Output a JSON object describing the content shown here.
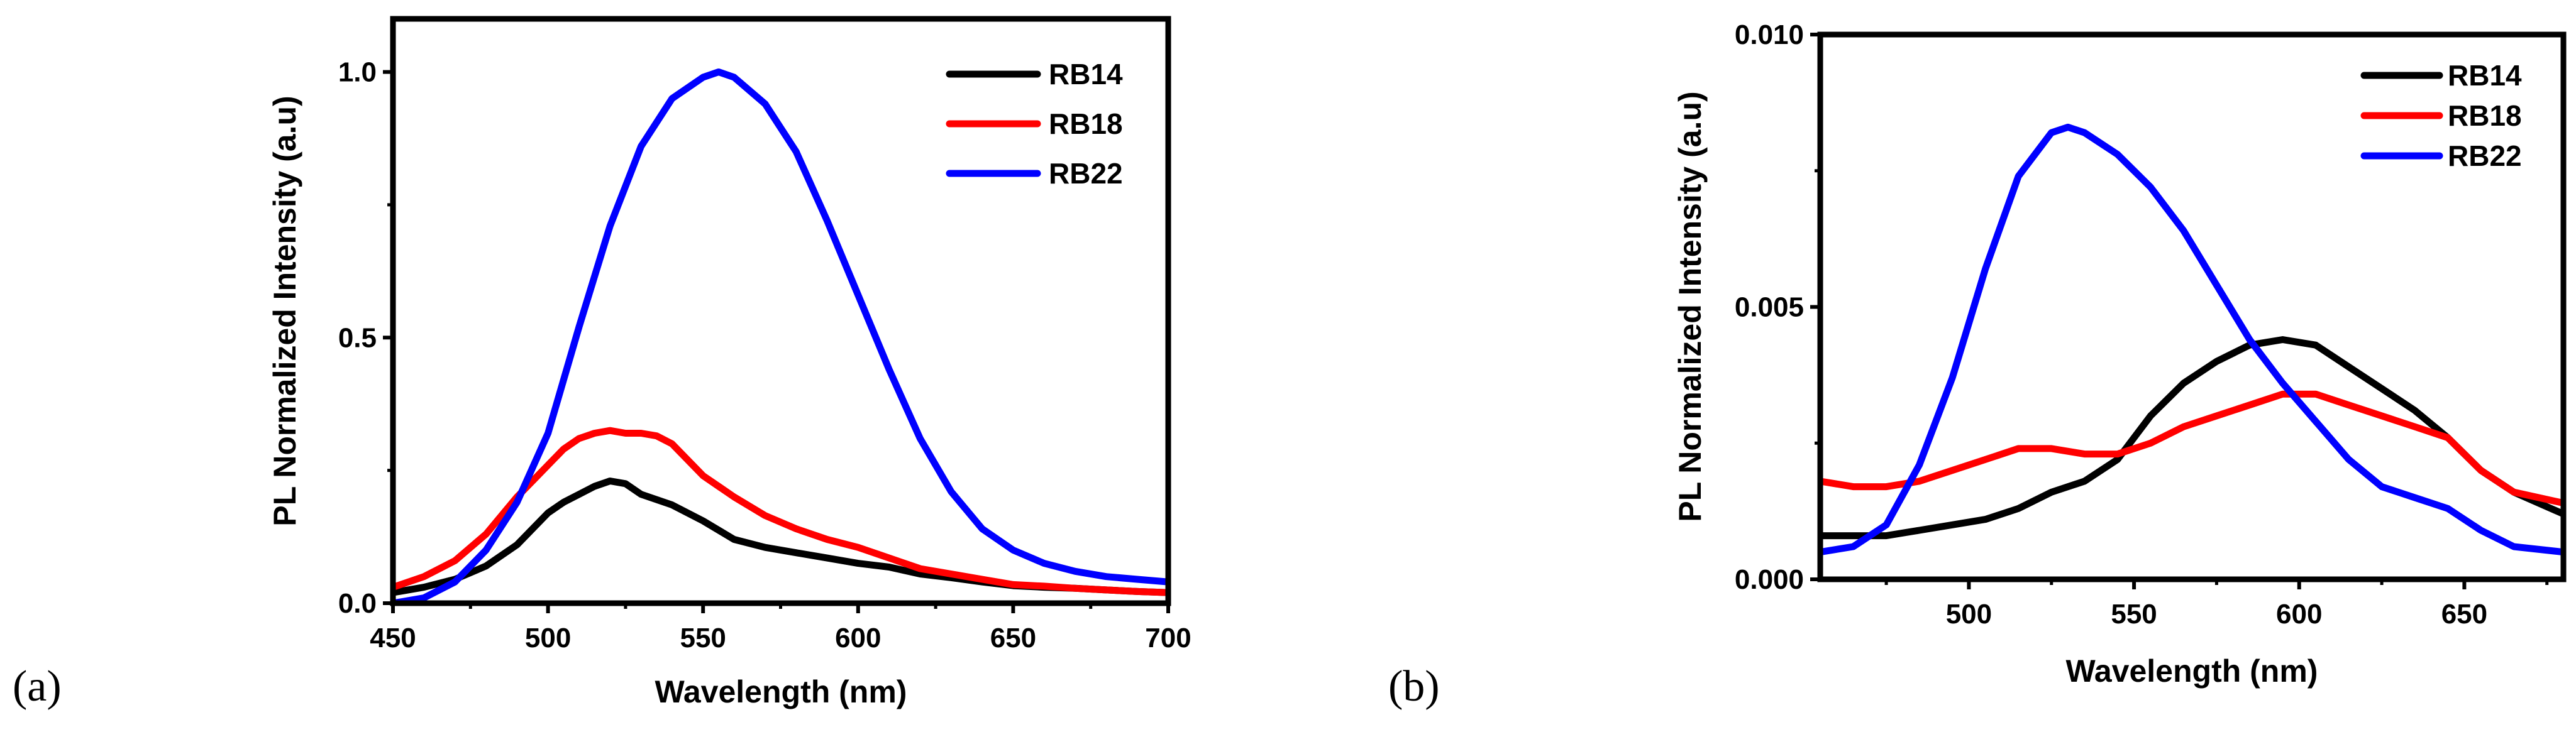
{
  "chart_data": [
    {
      "type": "line",
      "panel_label": "(a)",
      "xlabel": "Wavelength (nm)",
      "ylabel": "PL Normalized Intensity (a.u)",
      "xlim": [
        450,
        700
      ],
      "ylim": [
        0,
        1.1
      ],
      "x_ticks": [
        450,
        500,
        550,
        600,
        650,
        700
      ],
      "y_ticks": [
        0.0,
        0.5,
        1.0
      ],
      "x_tick_labels": [
        "450",
        "500",
        "550",
        "600",
        "650",
        "700"
      ],
      "y_tick_labels": [
        "0.0",
        "0.5",
        "1.0"
      ],
      "legend_position": "top-right",
      "series": [
        {
          "name": "RB14",
          "color": "#000000",
          "x": [
            450,
            460,
            470,
            480,
            490,
            500,
            505,
            510,
            515,
            520,
            525,
            530,
            540,
            550,
            560,
            570,
            580,
            590,
            600,
            610,
            620,
            630,
            640,
            650,
            660,
            670,
            680,
            690,
            700
          ],
          "y": [
            0.02,
            0.03,
            0.045,
            0.07,
            0.11,
            0.17,
            0.19,
            0.205,
            0.22,
            0.23,
            0.225,
            0.205,
            0.185,
            0.155,
            0.12,
            0.105,
            0.095,
            0.085,
            0.075,
            0.068,
            0.055,
            0.048,
            0.04,
            0.033,
            0.03,
            0.028,
            0.025,
            0.022,
            0.02
          ]
        },
        {
          "name": "RB18",
          "color": "#ff0000",
          "x": [
            450,
            460,
            470,
            480,
            490,
            500,
            505,
            510,
            515,
            520,
            525,
            530,
            535,
            540,
            550,
            560,
            570,
            580,
            590,
            600,
            610,
            620,
            630,
            640,
            650,
            660,
            670,
            680,
            690,
            700
          ],
          "y": [
            0.03,
            0.05,
            0.08,
            0.13,
            0.2,
            0.26,
            0.29,
            0.31,
            0.32,
            0.325,
            0.32,
            0.32,
            0.315,
            0.3,
            0.24,
            0.2,
            0.165,
            0.14,
            0.12,
            0.105,
            0.085,
            0.065,
            0.055,
            0.045,
            0.035,
            0.032,
            0.028,
            0.025,
            0.022,
            0.02
          ]
        },
        {
          "name": "RB22",
          "color": "#0000ff",
          "x": [
            450,
            460,
            470,
            480,
            490,
            500,
            510,
            520,
            530,
            540,
            550,
            555,
            560,
            570,
            580,
            590,
            600,
            610,
            620,
            630,
            640,
            650,
            660,
            670,
            680,
            690,
            700
          ],
          "y": [
            0.0,
            0.01,
            0.04,
            0.1,
            0.19,
            0.32,
            0.52,
            0.71,
            0.86,
            0.95,
            0.99,
            1.0,
            0.99,
            0.94,
            0.85,
            0.72,
            0.58,
            0.44,
            0.31,
            0.21,
            0.14,
            0.1,
            0.075,
            0.06,
            0.05,
            0.045,
            0.04
          ]
        }
      ]
    },
    {
      "type": "line",
      "panel_label": "(b)",
      "xlabel": "Wavelength (nm)",
      "ylabel": "PL Normalized Intensity (a.u)",
      "xlim": [
        455,
        680
      ],
      "ylim": [
        0,
        0.01
      ],
      "x_ticks": [
        500,
        550,
        600,
        650
      ],
      "y_ticks": [
        0.0,
        0.005,
        0.01
      ],
      "x_tick_labels": [
        "500",
        "550",
        "600",
        "650"
      ],
      "y_tick_labels": [
        "0.000",
        "0.005",
        "0.010"
      ],
      "legend_position": "top-right",
      "series": [
        {
          "name": "RB14",
          "color": "#000000",
          "x": [
            455,
            465,
            475,
            485,
            495,
            505,
            515,
            525,
            535,
            545,
            555,
            565,
            575,
            585,
            595,
            605,
            615,
            625,
            635,
            645,
            655,
            665,
            680
          ],
          "y": [
            0.0008,
            0.0008,
            0.0008,
            0.0009,
            0.001,
            0.0011,
            0.0013,
            0.0016,
            0.0018,
            0.0022,
            0.003,
            0.0036,
            0.004,
            0.0043,
            0.0044,
            0.0043,
            0.0039,
            0.0035,
            0.0031,
            0.0026,
            0.002,
            0.0016,
            0.0012
          ]
        },
        {
          "name": "RB18",
          "color": "#ff0000",
          "x": [
            455,
            465,
            475,
            485,
            495,
            505,
            515,
            525,
            535,
            545,
            555,
            565,
            575,
            585,
            595,
            605,
            615,
            625,
            635,
            645,
            655,
            665,
            680
          ],
          "y": [
            0.0018,
            0.0017,
            0.0017,
            0.0018,
            0.002,
            0.0022,
            0.0024,
            0.0024,
            0.0023,
            0.0023,
            0.0025,
            0.0028,
            0.003,
            0.0032,
            0.0034,
            0.0034,
            0.0032,
            0.003,
            0.0028,
            0.0026,
            0.002,
            0.0016,
            0.0014
          ]
        },
        {
          "name": "RB22",
          "color": "#0000ff",
          "x": [
            455,
            465,
            475,
            485,
            495,
            505,
            515,
            525,
            530,
            535,
            545,
            555,
            565,
            575,
            585,
            595,
            605,
            615,
            625,
            635,
            645,
            655,
            665,
            680
          ],
          "y": [
            0.0005,
            0.0006,
            0.001,
            0.0021,
            0.0037,
            0.0057,
            0.0074,
            0.0082,
            0.0083,
            0.0082,
            0.0078,
            0.0072,
            0.0064,
            0.0054,
            0.0044,
            0.0036,
            0.0029,
            0.0022,
            0.0017,
            0.0015,
            0.0013,
            0.0009,
            0.0006,
            0.0005
          ]
        }
      ]
    }
  ]
}
